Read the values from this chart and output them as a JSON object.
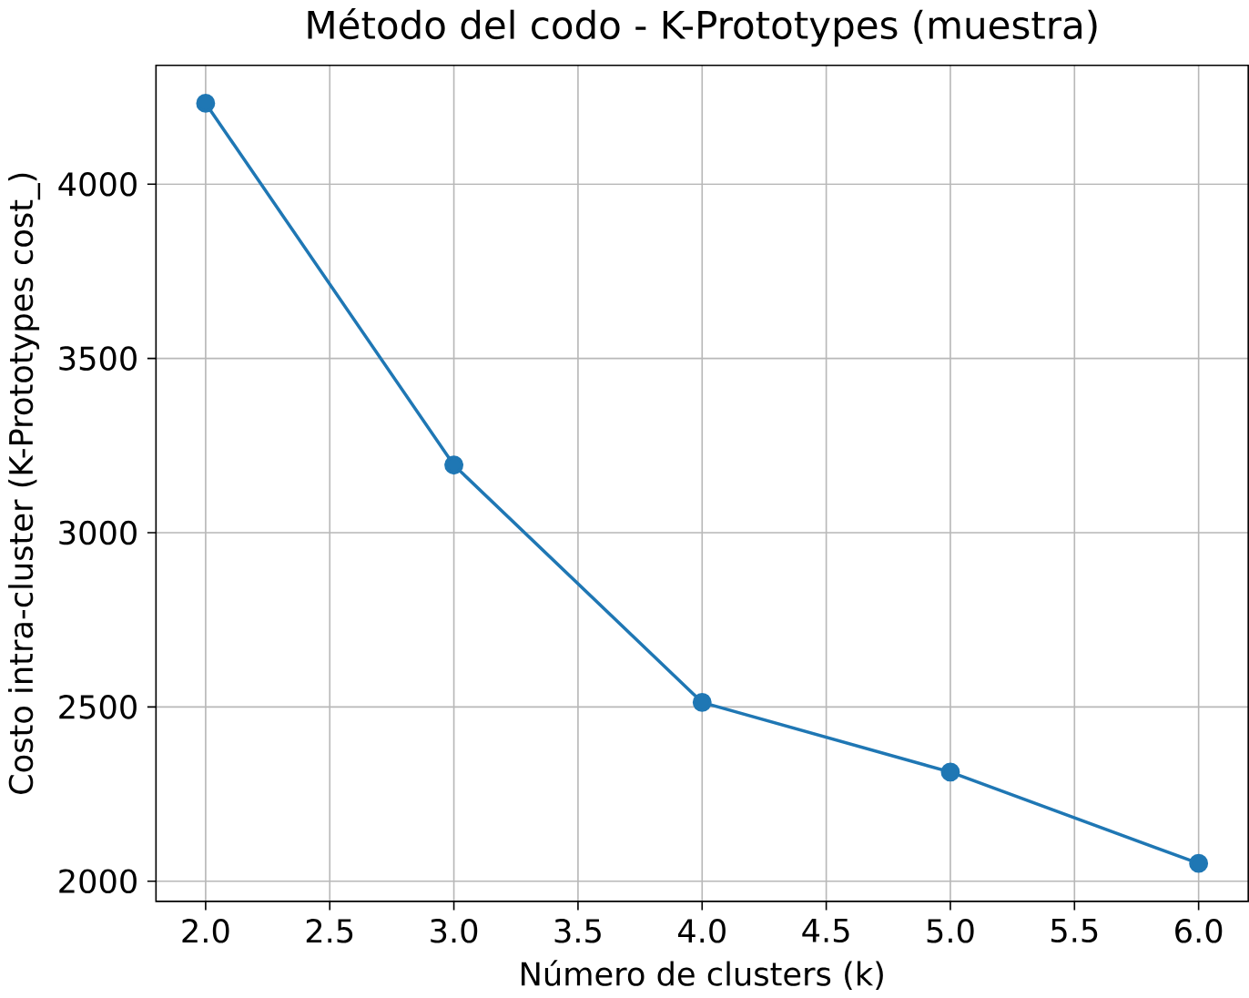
{
  "chart_data": {
    "type": "line",
    "title": "Método del codo - K-Prototypes (muestra)",
    "xlabel": "Número de clusters (k)",
    "ylabel": "Costo intra-cluster (K-Prototypes cost_)",
    "x": [
      2,
      3,
      4,
      5,
      6
    ],
    "series": [
      {
        "color": "#1f77b4",
        "values": [
          4232,
          3194,
          2513,
          2313,
          2051
        ]
      }
    ],
    "xlim": [
      1.8,
      6.2
    ],
    "ylim": [
      1942,
      4341
    ],
    "xticks": [
      {
        "value": 2,
        "label": "2.0"
      },
      {
        "value": 2.5,
        "label": "2.5"
      },
      {
        "value": 3,
        "label": "3.0"
      },
      {
        "value": 3.5,
        "label": "3.5"
      },
      {
        "value": 4,
        "label": "4.0"
      },
      {
        "value": 4.5,
        "label": "4.5"
      },
      {
        "value": 5,
        "label": "5.0"
      },
      {
        "value": 5.5,
        "label": "5.5"
      },
      {
        "value": 6,
        "label": "6.0"
      }
    ],
    "yticks": [
      2000,
      2500,
      3000,
      3500,
      4000
    ],
    "grid": true,
    "marker": "circle",
    "line_style": "solid"
  }
}
